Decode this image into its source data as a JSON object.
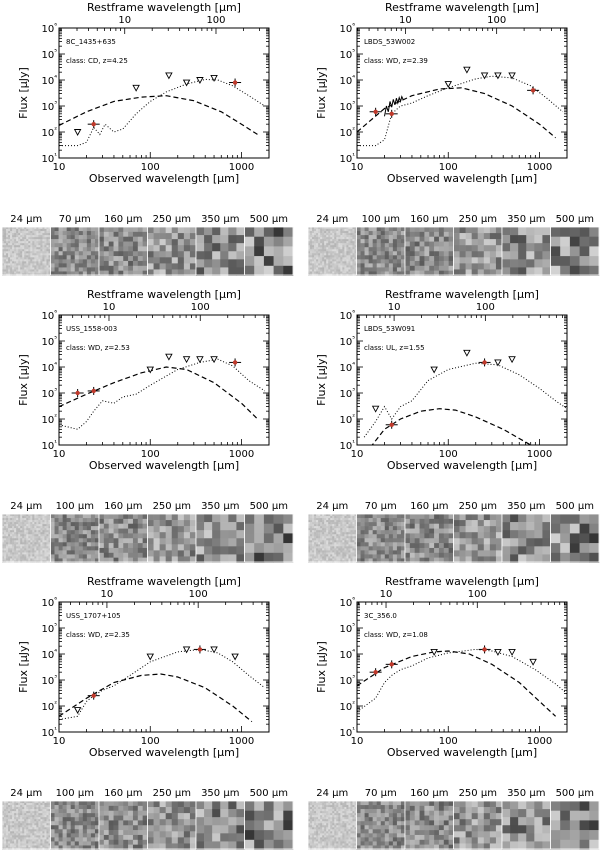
{
  "axis_text": {
    "top_xlabel": "Restframe wavelength [μm]",
    "bottom_xlabel": "Observed wavelength [μm]",
    "ylabel": "Flux [μJy]"
  },
  "chart_data": [
    {
      "type": "scatter",
      "name": "8C_1435+635",
      "class_text": "class: CD, z=4.25",
      "z": 4.25,
      "top_ticks": [
        "10",
        "100"
      ],
      "top_tick_values": [
        10,
        100
      ],
      "xlim": [
        10,
        2000
      ],
      "ylim": [
        10,
        1000000
      ],
      "xscale": "log",
      "yscale": "log",
      "x_ticks": [
        "10",
        "100",
        "1000"
      ],
      "y_ticks": [
        "10¹",
        "10²",
        "10³",
        "10⁴",
        "10⁵",
        "10⁶"
      ],
      "upper_limits": [
        [
          16,
          100
        ],
        [
          70,
          5000
        ],
        [
          160,
          15000
        ],
        [
          250,
          8000
        ],
        [
          350,
          10000
        ],
        [
          500,
          12000
        ]
      ],
      "detections": [
        [
          24,
          200
        ],
        [
          850,
          8000
        ]
      ],
      "dashed_model": [
        [
          10,
          180
        ],
        [
          20,
          600
        ],
        [
          40,
          1500
        ],
        [
          80,
          2200
        ],
        [
          150,
          2500
        ],
        [
          300,
          1600
        ],
        [
          600,
          600
        ],
        [
          1000,
          200
        ],
        [
          1500,
          80
        ]
      ],
      "dotted_model": [
        [
          10,
          30
        ],
        [
          16,
          30
        ],
        [
          20,
          40
        ],
        [
          24,
          150
        ],
        [
          28,
          80
        ],
        [
          32,
          200
        ],
        [
          40,
          100
        ],
        [
          50,
          130
        ],
        [
          70,
          500
        ],
        [
          100,
          1500
        ],
        [
          150,
          3500
        ],
        [
          250,
          7000
        ],
        [
          400,
          10500
        ],
        [
          550,
          10000
        ],
        [
          800,
          6000
        ],
        [
          1200,
          2500
        ],
        [
          1800,
          1000
        ]
      ],
      "thumbnails": [
        "24 μm",
        "70 μm",
        "160 μm",
        "250 μm",
        "350 μm",
        "500 μm"
      ]
    },
    {
      "type": "scatter",
      "name": "LBDS_53W002",
      "class_text": "class: WD, z=2.39",
      "z": 2.39,
      "top_ticks": [
        "10",
        "100"
      ],
      "top_tick_values": [
        10,
        100
      ],
      "xlim": [
        10,
        2000
      ],
      "ylim": [
        10,
        1000000
      ],
      "xscale": "log",
      "yscale": "log",
      "x_ticks": [
        "10",
        "100",
        "1000"
      ],
      "y_ticks": [
        "10¹",
        "10²",
        "10³",
        "10⁴",
        "10⁵",
        "10⁶"
      ],
      "upper_limits": [
        [
          100,
          7000
        ],
        [
          160,
          25000
        ],
        [
          250,
          15000
        ],
        [
          350,
          15000
        ],
        [
          500,
          15000
        ]
      ],
      "detections": [
        [
          16,
          600
        ],
        [
          24,
          500
        ],
        [
          850,
          4000
        ]
      ],
      "dashed_model": [
        [
          10,
          100
        ],
        [
          20,
          800
        ],
        [
          40,
          2500
        ],
        [
          80,
          4500
        ],
        [
          140,
          5000
        ],
        [
          250,
          3000
        ],
        [
          500,
          1000
        ],
        [
          1000,
          200
        ],
        [
          1500,
          60
        ]
      ],
      "dotted_model": [
        [
          10,
          30
        ],
        [
          16,
          30
        ],
        [
          20,
          50
        ],
        [
          24,
          500
        ],
        [
          30,
          1000
        ],
        [
          40,
          1300
        ],
        [
          60,
          2500
        ],
        [
          100,
          5000
        ],
        [
          200,
          11000
        ],
        [
          300,
          14000
        ],
        [
          500,
          12000
        ],
        [
          800,
          6000
        ],
        [
          1200,
          2000
        ],
        [
          1800,
          600
        ]
      ],
      "spectrum": [
        [
          20,
          400
        ],
        [
          21,
          1000
        ],
        [
          22,
          600
        ],
        [
          23,
          1500
        ],
        [
          24,
          900
        ],
        [
          25,
          1800
        ],
        [
          26,
          1100
        ],
        [
          27,
          2000
        ],
        [
          28,
          1300
        ],
        [
          29,
          2100
        ],
        [
          30,
          1500
        ],
        [
          31,
          2300
        ],
        [
          32,
          1800
        ]
      ],
      "thumbnails": [
        "24 μm",
        "100 μm",
        "160 μm",
        "250 μm",
        "350 μm",
        "500 μm"
      ]
    },
    {
      "type": "scatter",
      "name": "USS_1558-003",
      "class_text": "class: WD, z=2.53",
      "z": 2.53,
      "top_ticks": [
        "10",
        "100"
      ],
      "top_tick_values": [
        10,
        100
      ],
      "xlim": [
        10,
        2000
      ],
      "ylim": [
        10,
        1000000
      ],
      "xscale": "log",
      "yscale": "log",
      "x_ticks": [
        "10",
        "100",
        "1000"
      ],
      "y_ticks": [
        "10¹",
        "10²",
        "10³",
        "10⁴",
        "10⁵",
        "10⁶"
      ],
      "upper_limits": [
        [
          100,
          8000
        ],
        [
          160,
          25000
        ],
        [
          250,
          20000
        ],
        [
          350,
          20000
        ],
        [
          500,
          20000
        ]
      ],
      "detections": [
        [
          16,
          1000
        ],
        [
          24,
          1200
        ],
        [
          850,
          15000
        ]
      ],
      "dashed_model": [
        [
          10,
          300
        ],
        [
          20,
          900
        ],
        [
          40,
          2500
        ],
        [
          80,
          6000
        ],
        [
          150,
          10000
        ],
        [
          250,
          8000
        ],
        [
          500,
          2500
        ],
        [
          1000,
          400
        ],
        [
          1500,
          100
        ]
      ],
      "dotted_model": [
        [
          10,
          60
        ],
        [
          16,
          40
        ],
        [
          20,
          80
        ],
        [
          24,
          200
        ],
        [
          30,
          500
        ],
        [
          40,
          400
        ],
        [
          50,
          700
        ],
        [
          70,
          900
        ],
        [
          100,
          2000
        ],
        [
          200,
          8000
        ],
        [
          350,
          15000
        ],
        [
          550,
          20000
        ],
        [
          800,
          11000
        ],
        [
          1200,
          3000
        ],
        [
          1800,
          1200
        ]
      ],
      "thumbnails": [
        "24 μm",
        "100 μm",
        "160 μm",
        "250 μm",
        "350 μm",
        "500 μm"
      ]
    },
    {
      "type": "scatter",
      "name": "LBDS_53W091",
      "class_text": "class: UL, z=1.55",
      "z": 1.55,
      "top_ticks": [
        "10",
        "100"
      ],
      "top_tick_values": [
        10,
        100
      ],
      "xlim": [
        10,
        2000
      ],
      "ylim": [
        10,
        1000000
      ],
      "xscale": "log",
      "yscale": "log",
      "x_ticks": [
        "10",
        "100",
        "1000"
      ],
      "y_ticks": [
        "10¹",
        "10²",
        "10³",
        "10⁴",
        "10⁵",
        "10⁶"
      ],
      "upper_limits": [
        [
          16,
          250
        ],
        [
          70,
          8000
        ],
        [
          160,
          35000
        ],
        [
          350,
          15000
        ],
        [
          500,
          20000
        ]
      ],
      "detections": [
        [
          24,
          60
        ],
        [
          250,
          15000
        ]
      ],
      "dashed_model": [
        [
          14,
          8
        ],
        [
          20,
          40
        ],
        [
          30,
          100
        ],
        [
          50,
          200
        ],
        [
          80,
          250
        ],
        [
          120,
          220
        ],
        [
          200,
          120
        ],
        [
          400,
          40
        ],
        [
          800,
          10
        ]
      ],
      "dotted_model": [
        [
          12,
          20
        ],
        [
          16,
          80
        ],
        [
          20,
          300
        ],
        [
          24,
          100
        ],
        [
          30,
          300
        ],
        [
          40,
          500
        ],
        [
          60,
          3000
        ],
        [
          100,
          8000
        ],
        [
          200,
          14000
        ],
        [
          350,
          12000
        ],
        [
          600,
          5000
        ],
        [
          1000,
          1500
        ],
        [
          1500,
          500
        ],
        [
          2000,
          250
        ]
      ],
      "thumbnails": [
        "24 μm",
        "70 μm",
        "160 μm",
        "250 μm",
        "350 μm",
        "500 μm"
      ]
    },
    {
      "type": "scatter",
      "name": "USS_1707+105",
      "class_text": "class: WD, z=2.35",
      "z": 2.35,
      "top_ticks": [
        "10",
        "100"
      ],
      "top_tick_values": [
        10,
        100
      ],
      "xlim": [
        10,
        2000
      ],
      "ylim": [
        10,
        1000000
      ],
      "xscale": "log",
      "yscale": "log",
      "x_ticks": [
        "10",
        "100",
        "1000"
      ],
      "y_ticks": [
        "10¹",
        "10²",
        "10³",
        "10⁴",
        "10⁵",
        "10⁶"
      ],
      "upper_limits": [
        [
          16,
          70
        ],
        [
          100,
          8000
        ],
        [
          250,
          15000
        ],
        [
          500,
          15000
        ],
        [
          850,
          8000
        ]
      ],
      "detections": [
        [
          24,
          250
        ],
        [
          350,
          15000
        ]
      ],
      "dashed_model": [
        [
          10,
          40
        ],
        [
          20,
          200
        ],
        [
          40,
          800
        ],
        [
          80,
          1500
        ],
        [
          130,
          1700
        ],
        [
          200,
          1300
        ],
        [
          400,
          500
        ],
        [
          800,
          100
        ],
        [
          1300,
          25
        ]
      ],
      "dotted_model": [
        [
          10,
          30
        ],
        [
          16,
          40
        ],
        [
          20,
          150
        ],
        [
          24,
          250
        ],
        [
          30,
          400
        ],
        [
          40,
          600
        ],
        [
          60,
          1500
        ],
        [
          100,
          5000
        ],
        [
          200,
          12000
        ],
        [
          350,
          15000
        ],
        [
          550,
          11000
        ],
        [
          800,
          5000
        ],
        [
          1200,
          1500
        ],
        [
          1800,
          500
        ]
      ],
      "thumbnails": [
        "24 μm",
        "100 μm",
        "160 μm",
        "250 μm",
        "350 μm",
        "500 μm"
      ]
    },
    {
      "type": "scatter",
      "name": "3C_356.0",
      "class_text": "class: WD, z=1.08",
      "z": 1.08,
      "top_ticks": [
        "10",
        "100"
      ],
      "top_tick_values": [
        10,
        100
      ],
      "xlim": [
        10,
        2000
      ],
      "ylim": [
        10,
        1000000
      ],
      "xscale": "log",
      "yscale": "log",
      "x_ticks": [
        "10",
        "100",
        "1000"
      ],
      "y_ticks": [
        "10¹",
        "10²",
        "10³",
        "10⁴",
        "10⁵",
        "10⁶"
      ],
      "upper_limits": [
        [
          70,
          12000
        ],
        [
          350,
          12000
        ],
        [
          500,
          12000
        ],
        [
          850,
          5000
        ]
      ],
      "detections": [
        [
          16,
          2000
        ],
        [
          24,
          4000
        ],
        [
          250,
          15000
        ]
      ],
      "dashed_model": [
        [
          10,
          600
        ],
        [
          20,
          3000
        ],
        [
          40,
          8000
        ],
        [
          70,
          12000
        ],
        [
          100,
          13000
        ],
        [
          170,
          10000
        ],
        [
          300,
          4000
        ],
        [
          600,
          800
        ],
        [
          1000,
          150
        ],
        [
          1500,
          40
        ]
      ],
      "dotted_model": [
        [
          10,
          60
        ],
        [
          16,
          200
        ],
        [
          20,
          800
        ],
        [
          24,
          1500
        ],
        [
          30,
          2500
        ],
        [
          40,
          3500
        ],
        [
          60,
          7000
        ],
        [
          100,
          11000
        ],
        [
          200,
          15000
        ],
        [
          300,
          13000
        ],
        [
          500,
          8000
        ],
        [
          900,
          2500
        ],
        [
          1500,
          700
        ],
        [
          2000,
          300
        ]
      ],
      "thumbnails": [
        "24 μm",
        "70 μm",
        "160 μm",
        "250 μm",
        "350 μm",
        "500 μm"
      ]
    }
  ]
}
